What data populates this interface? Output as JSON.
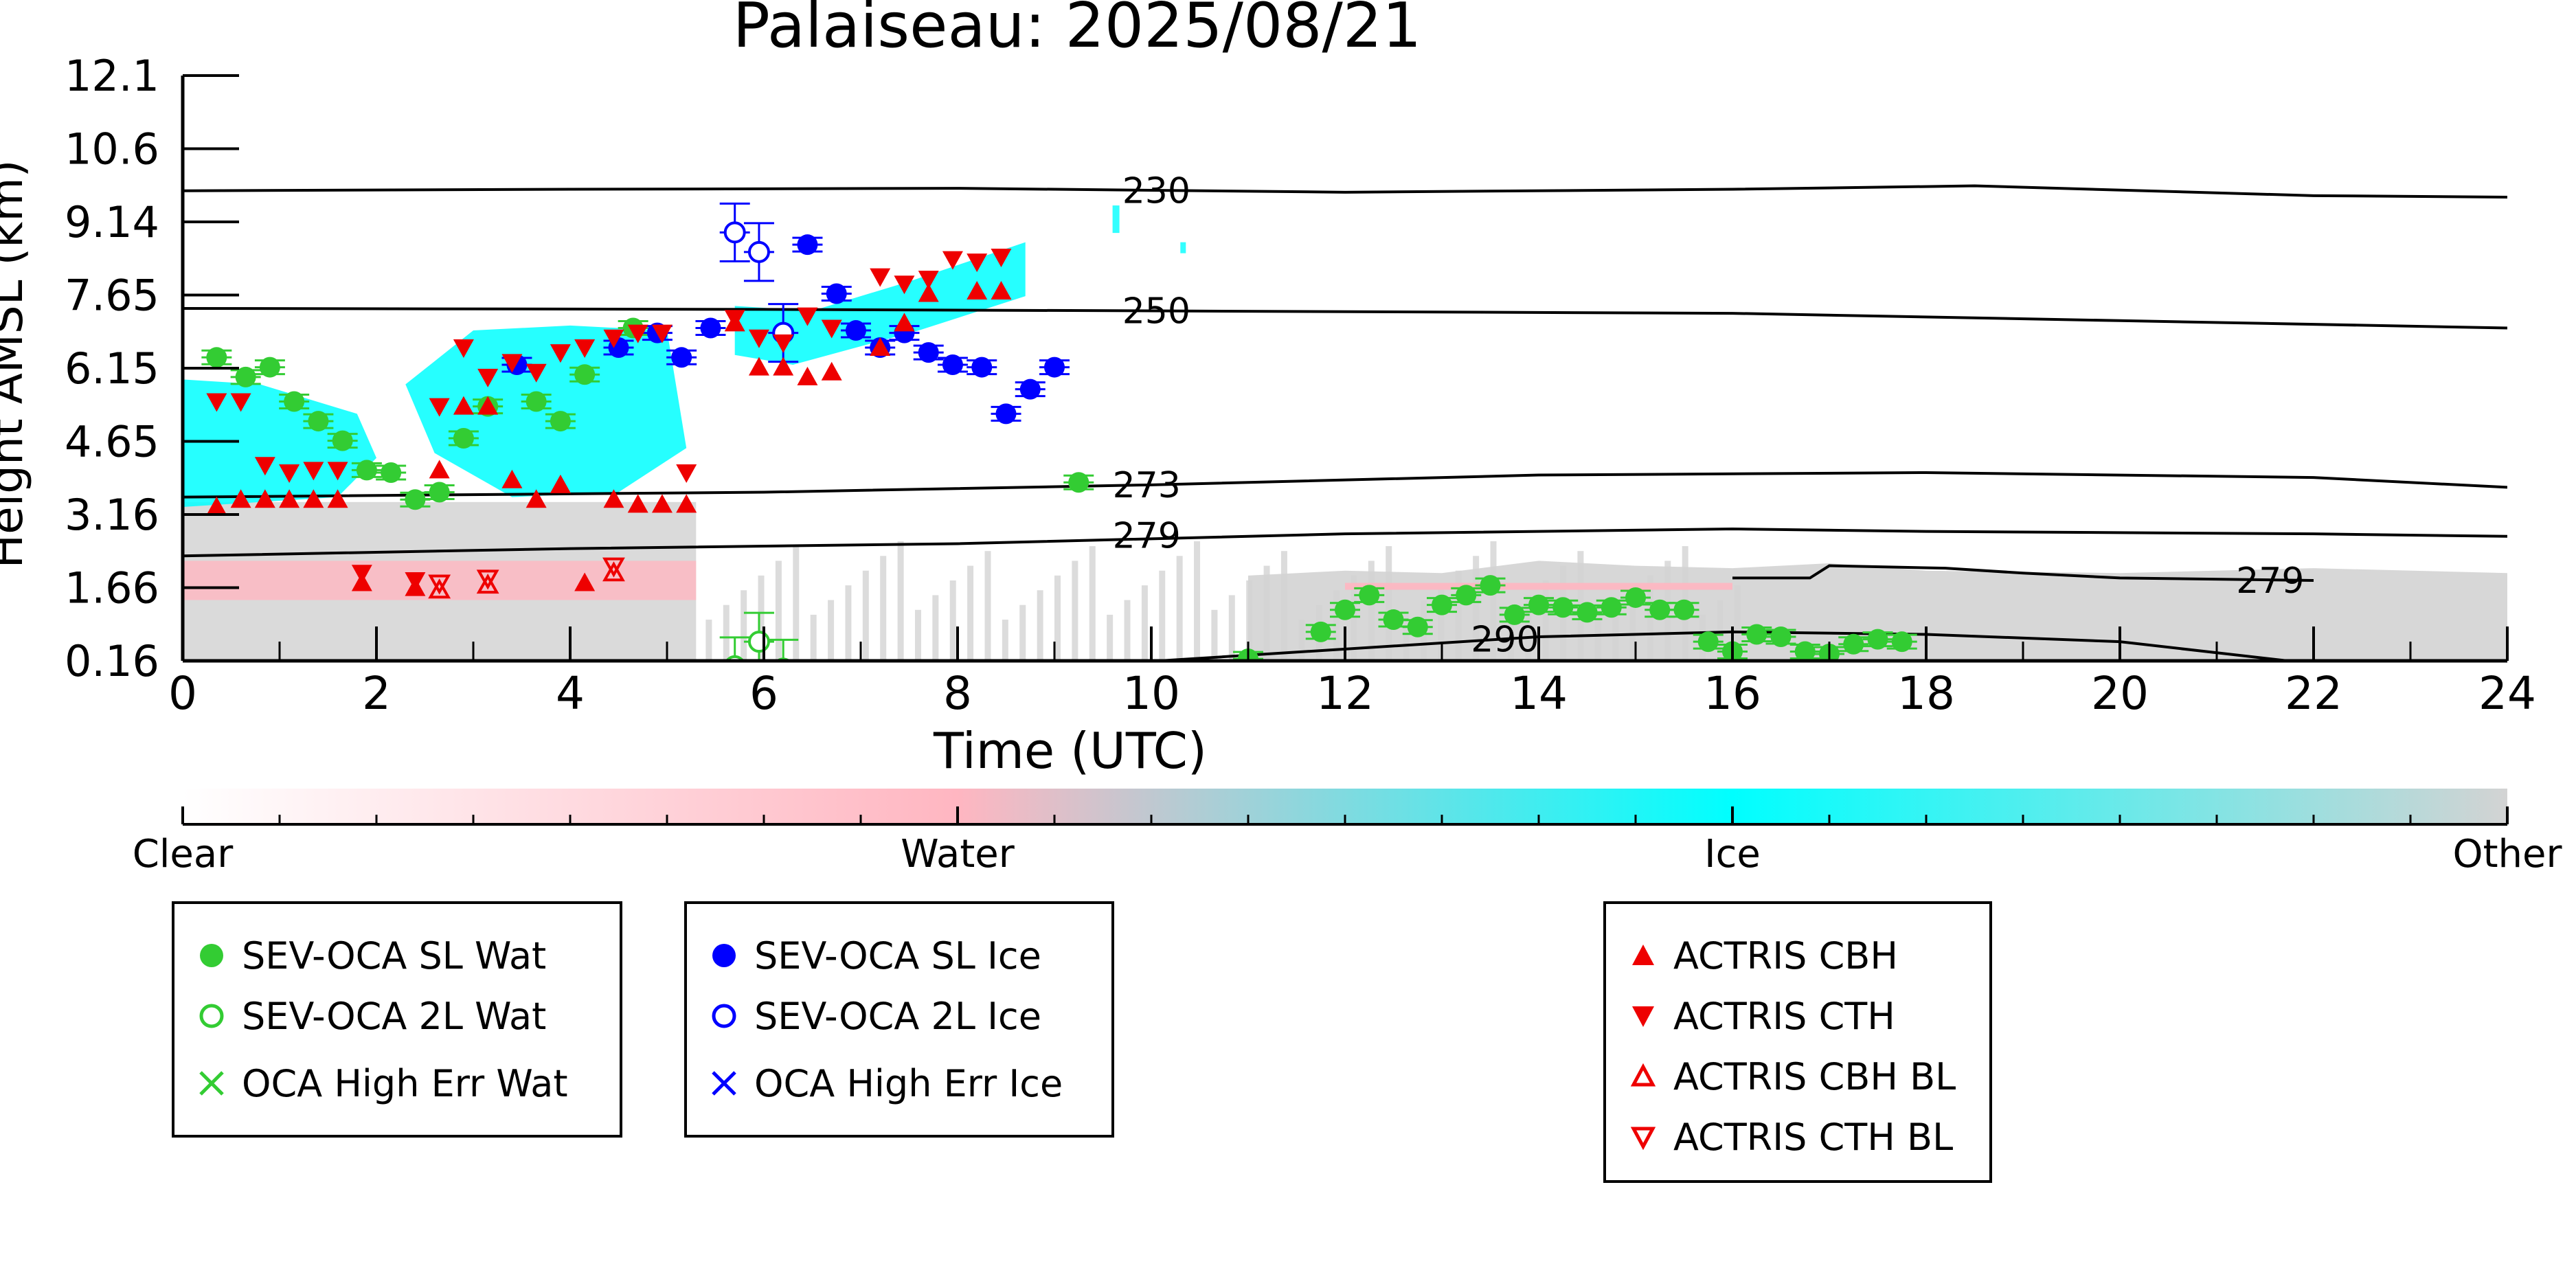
{
  "chart_data": {
    "type": "scatter",
    "title": "Palaiseau: 2025/08/21",
    "xlabel": "Time (UTC)",
    "ylabel": "Height AMSL (km)",
    "xlim": [
      0,
      24
    ],
    "ylim": [
      0.16,
      12.1
    ],
    "x_ticks": [
      "0",
      "2",
      "4",
      "6",
      "8",
      "10",
      "12",
      "14",
      "16",
      "18",
      "20",
      "22",
      "24"
    ],
    "y_ticks": [
      "0.16",
      "1.66",
      "3.16",
      "4.65",
      "6.15",
      "7.65",
      "9.14",
      "10.6",
      "12.1"
    ],
    "background": "cloud classification curtain (Clear / Water / Ice / Other)",
    "colorbar": {
      "labels": [
        "Clear",
        "Water",
        "Ice",
        "Other"
      ],
      "colors": [
        "#ffffff",
        "#ffb6c1",
        "#00ffff",
        "#d3d3d3"
      ]
    },
    "temperature_contours": [
      {
        "label": "230",
        "points": [
          [
            0,
            9.75
          ],
          [
            4,
            9.78
          ],
          [
            8,
            9.8
          ],
          [
            12,
            9.72
          ],
          [
            16,
            9.78
          ],
          [
            18.5,
            9.85
          ],
          [
            22,
            9.65
          ],
          [
            24,
            9.62
          ]
        ],
        "label_at": [
          9.7,
          9.75
        ]
      },
      {
        "label": "250",
        "points": [
          [
            0,
            7.35
          ],
          [
            6,
            7.33
          ],
          [
            10,
            7.3
          ],
          [
            16,
            7.25
          ],
          [
            20,
            7.1
          ],
          [
            24,
            6.95
          ]
        ],
        "label_at": [
          9.7,
          7.3
        ]
      },
      {
        "label": "273",
        "points": [
          [
            0,
            3.5
          ],
          [
            6,
            3.6
          ],
          [
            10,
            3.75
          ],
          [
            14,
            3.95
          ],
          [
            18,
            4.0
          ],
          [
            22,
            3.9
          ],
          [
            24,
            3.7
          ]
        ],
        "label_at": [
          9.6,
          3.75
        ]
      },
      {
        "label": "279",
        "points": [
          [
            0,
            2.3
          ],
          [
            4,
            2.45
          ],
          [
            8,
            2.55
          ],
          [
            12,
            2.75
          ],
          [
            16,
            2.85
          ],
          [
            18,
            2.8
          ],
          [
            22,
            2.75
          ],
          [
            24,
            2.7
          ]
        ],
        "label_at": [
          9.6,
          2.72
        ]
      },
      {
        "label": "279",
        "points": [
          [
            16,
            1.85
          ],
          [
            16.8,
            1.85
          ],
          [
            17,
            2.1
          ],
          [
            18.2,
            2.05
          ],
          [
            19,
            1.95
          ],
          [
            20,
            1.85
          ],
          [
            22,
            1.8
          ]
        ],
        "label_at": [
          21.2,
          1.8
        ]
      },
      {
        "label": "290",
        "points": [
          [
            8,
            -0.1
          ],
          [
            12,
            0.4
          ],
          [
            14,
            0.65
          ],
          [
            16,
            0.75
          ],
          [
            18,
            0.7
          ],
          [
            20,
            0.55
          ],
          [
            22,
            0.1
          ]
        ],
        "label_at": [
          13.3,
          0.6
        ]
      }
    ],
    "series": [
      {
        "name": "SEV-OCA SL Wat",
        "color": "#33cc33",
        "marker": "filled-circle",
        "x": [
          0.35,
          0.65,
          0.9,
          1.15,
          1.4,
          1.65,
          1.9,
          2.15,
          2.4,
          2.65,
          2.9,
          3.15,
          3.65,
          3.9,
          4.15,
          4.65,
          9.25,
          11.0,
          11.75,
          12.0,
          12.25,
          12.5,
          12.75,
          13.0,
          13.25,
          13.5,
          13.75,
          14.0,
          14.25,
          14.5,
          14.75,
          15.0,
          15.25,
          15.5,
          15.75,
          16.0,
          16.25,
          16.5,
          16.75,
          17.0,
          17.25,
          17.5,
          17.75
        ],
        "y": [
          6.35,
          5.95,
          6.15,
          5.45,
          5.05,
          4.65,
          4.05,
          4.0,
          3.45,
          3.6,
          4.7,
          5.35,
          5.45,
          5.05,
          6.0,
          6.95,
          3.8,
          0.2,
          0.75,
          1.2,
          1.5,
          1.0,
          0.85,
          1.3,
          1.5,
          1.7,
          1.1,
          1.3,
          1.25,
          1.15,
          1.25,
          1.45,
          1.2,
          1.2,
          0.55,
          0.35,
          0.7,
          0.65,
          0.35,
          0.3,
          0.5,
          0.6,
          0.55
        ]
      },
      {
        "name": "SEV-OCA 2L Wat",
        "color": "#33cc33",
        "marker": "open-circle",
        "x": [
          5.7,
          5.95,
          6.2
        ],
        "y": [
          0.05,
          0.55,
          0.0
        ]
      },
      {
        "name": "OCA High Err Wat",
        "color": "#33cc33",
        "marker": "x",
        "x": [],
        "y": []
      },
      {
        "name": "SEV-OCA SL Ice",
        "color": "#0000ff",
        "marker": "filled-circle",
        "x": [
          3.45,
          4.5,
          4.9,
          5.15,
          5.45,
          6.45,
          6.75,
          6.95,
          7.2,
          7.45,
          7.7,
          7.95,
          8.25,
          8.5,
          8.75,
          9.0
        ],
        "y": [
          6.2,
          6.55,
          6.85,
          6.35,
          6.95,
          8.65,
          7.65,
          6.9,
          6.55,
          6.85,
          6.45,
          6.2,
          6.15,
          5.2,
          5.7,
          6.15
        ]
      },
      {
        "name": "SEV-OCA 2L Ice",
        "color": "#0000ff",
        "marker": "open-circle",
        "x": [
          5.7,
          5.95,
          6.2
        ],
        "y": [
          8.9,
          8.5,
          6.85
        ]
      },
      {
        "name": "OCA High Err Ice",
        "color": "#0000ff",
        "marker": "x",
        "x": [],
        "y": []
      },
      {
        "name": "ACTRIS CBH",
        "color": "#ee0000",
        "marker": "filled-triangle-up",
        "x": [
          0.35,
          0.6,
          0.85,
          1.1,
          1.35,
          1.6,
          1.85,
          2.4,
          2.65,
          2.9,
          3.15,
          3.4,
          3.65,
          3.9,
          4.15,
          4.45,
          4.7,
          4.95,
          5.2,
          5.7,
          5.95,
          6.2,
          6.45,
          6.7,
          7.2,
          7.45,
          7.7,
          8.2,
          8.45
        ],
        "y": [
          3.3,
          3.45,
          3.45,
          3.45,
          3.45,
          3.45,
          1.75,
          1.65,
          4.05,
          5.35,
          5.35,
          3.85,
          3.45,
          3.75,
          1.75,
          3.45,
          3.35,
          3.35,
          3.35,
          7.05,
          6.15,
          6.15,
          5.95,
          6.05,
          6.55,
          7.05,
          7.65,
          7.7,
          7.7
        ]
      },
      {
        "name": "ACTRIS CTH",
        "color": "#ee0000",
        "marker": "filled-triangle-down",
        "x": [
          0.35,
          0.6,
          0.85,
          1.1,
          1.35,
          1.6,
          1.85,
          2.4,
          2.65,
          2.9,
          3.15,
          3.4,
          3.65,
          3.9,
          4.15,
          4.45,
          4.7,
          4.95,
          5.2,
          5.7,
          5.95,
          6.2,
          6.45,
          6.7,
          7.2,
          7.45,
          7.7,
          7.95,
          8.2,
          8.45
        ],
        "y": [
          5.45,
          5.45,
          4.15,
          4.0,
          4.05,
          4.05,
          1.95,
          1.8,
          5.35,
          6.55,
          5.95,
          6.25,
          6.05,
          6.45,
          6.55,
          6.75,
          6.85,
          6.85,
          4.0,
          7.15,
          6.75,
          6.65,
          7.2,
          6.95,
          8.0,
          7.85,
          7.95,
          8.35,
          8.3,
          8.4
        ]
      },
      {
        "name": "ACTRIS CBH BL",
        "color": "#ee0000",
        "marker": "open-triangle-up",
        "x": [
          2.65,
          3.15,
          4.45
        ],
        "y": [
          1.6,
          1.7,
          1.95
        ]
      },
      {
        "name": "ACTRIS CTH BL",
        "color": "#ee0000",
        "marker": "open-triangle-down",
        "x": [
          2.65,
          3.15,
          4.45
        ],
        "y": [
          1.75,
          1.85,
          2.1
        ]
      }
    ]
  }
}
